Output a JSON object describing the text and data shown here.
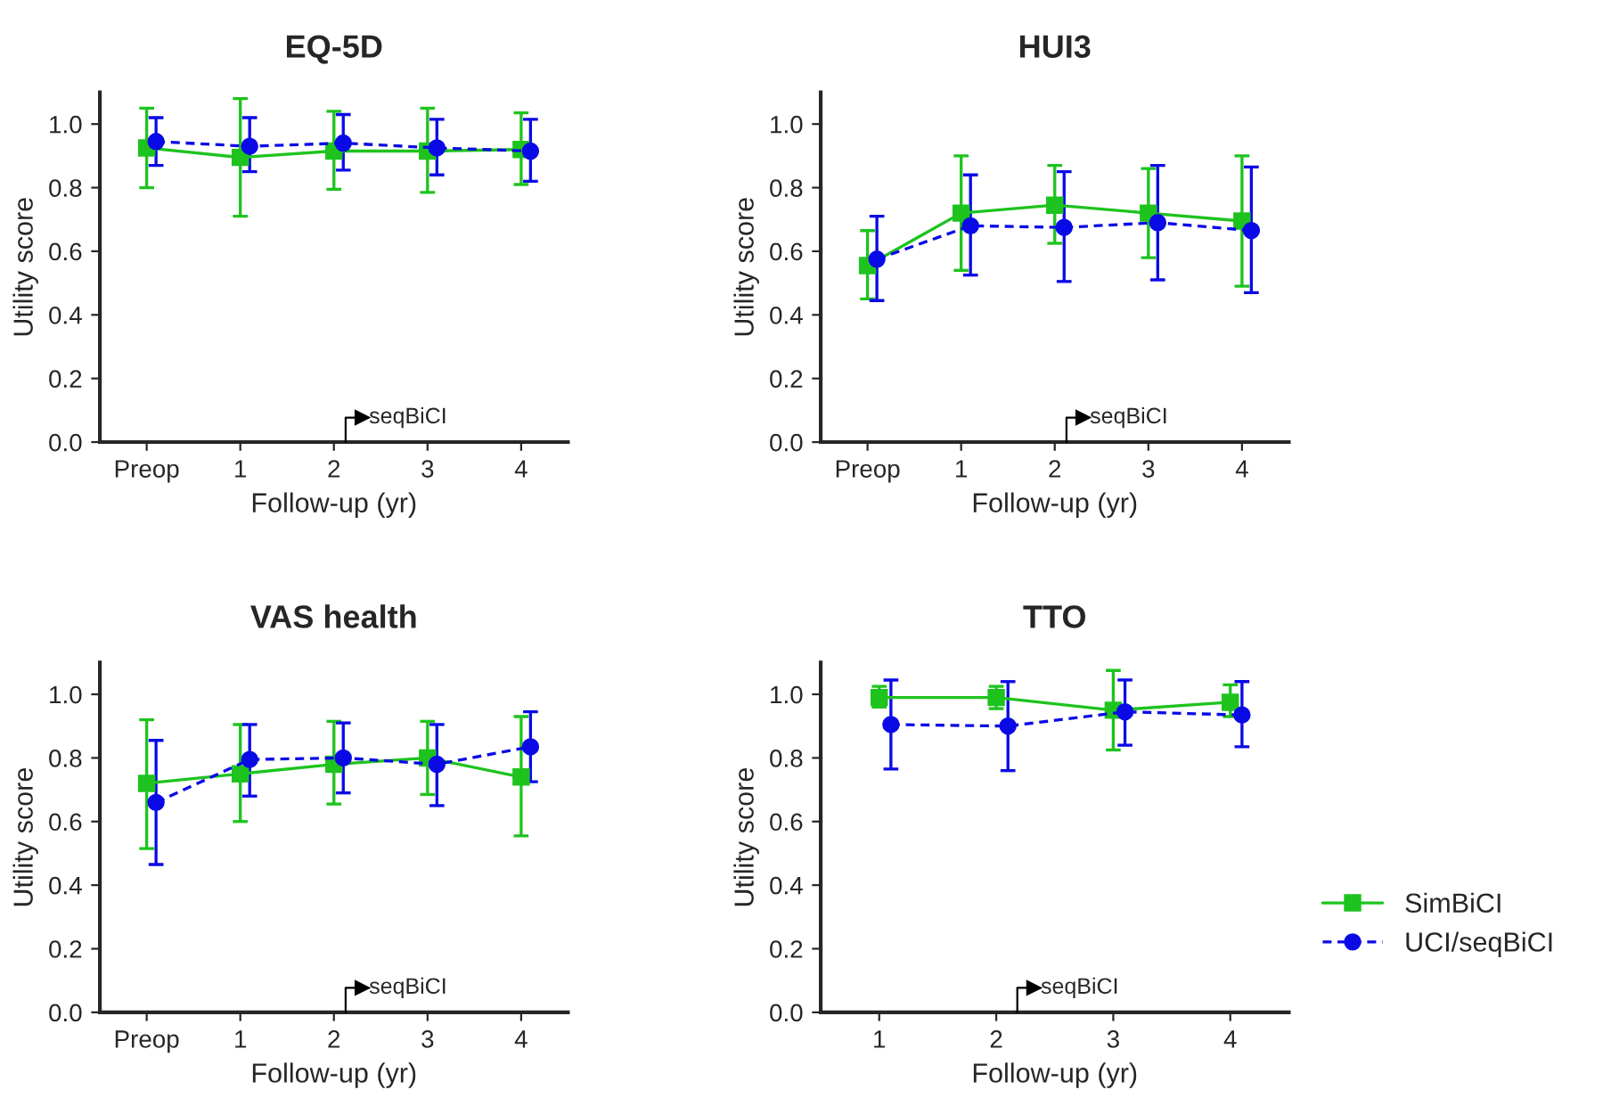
{
  "chart_data": [
    {
      "type": "line",
      "title": "EQ-5D",
      "xlabel": "Follow-up (yr)",
      "ylabel": "Utility score",
      "categories": [
        "Preop",
        "1",
        "2",
        "3",
        "4"
      ],
      "ylim": [
        0,
        1.1
      ],
      "yticks": [
        {
          "value": 0,
          "label": "0.0"
        },
        {
          "value": 0.2,
          "label": "0.2"
        },
        {
          "value": 0.4,
          "label": "0.4"
        },
        {
          "value": 0.6,
          "label": "0.6"
        },
        {
          "value": 0.8,
          "label": "0.8"
        },
        {
          "value": 1,
          "label": "1.0"
        }
      ],
      "grid": false,
      "annotations": [
        "seqBiCI"
      ],
      "series": [
        {
          "color": "#1ec31e",
          "marker": "square",
          "line_style": "solid",
          "values": [
            0.925,
            0.895,
            0.915,
            0.915,
            0.92
          ],
          "errors": [
            [
              0.8,
              1.05
            ],
            [
              0.71,
              1.08
            ],
            [
              0.795,
              1.04
            ],
            [
              0.785,
              1.05
            ],
            [
              0.81,
              1.035
            ]
          ]
        },
        {
          "color": "#0a0ae6",
          "marker": "circle",
          "line_style": "dashed",
          "values": [
            0.945,
            0.93,
            0.94,
            0.925,
            0.915
          ],
          "errors": [
            [
              0.87,
              1.02
            ],
            [
              0.85,
              1.02
            ],
            [
              0.855,
              1.03
            ],
            [
              0.84,
              1.015
            ],
            [
              0.82,
              1.015
            ]
          ]
        }
      ]
    },
    {
      "type": "line",
      "title": "HUI3",
      "xlabel": "Follow-up (yr)",
      "ylabel": "Utility score",
      "categories": [
        "Preop",
        "1",
        "2",
        "3",
        "4"
      ],
      "ylim": [
        0,
        1.1
      ],
      "yticks": [
        {
          "value": 0,
          "label": "0.0"
        },
        {
          "value": 0.2,
          "label": "0.2"
        },
        {
          "value": 0.4,
          "label": "0.4"
        },
        {
          "value": 0.6,
          "label": "0.6"
        },
        {
          "value": 0.8,
          "label": "0.8"
        },
        {
          "value": 1,
          "label": "1.0"
        }
      ],
      "grid": false,
      "annotations": [
        "seqBiCI"
      ],
      "series": [
        {
          "color": "#1ec31e",
          "marker": "square",
          "line_style": "solid",
          "values": [
            0.555,
            0.72,
            0.745,
            0.72,
            0.695
          ],
          "errors": [
            [
              0.45,
              0.665
            ],
            [
              0.54,
              0.9
            ],
            [
              0.625,
              0.87
            ],
            [
              0.58,
              0.86
            ],
            [
              0.49,
              0.9
            ]
          ]
        },
        {
          "color": "#0a0ae6",
          "marker": "circle",
          "line_style": "dashed",
          "values": [
            0.575,
            0.68,
            0.675,
            0.69,
            0.665
          ],
          "errors": [
            [
              0.445,
              0.71
            ],
            [
              0.525,
              0.84
            ],
            [
              0.505,
              0.85
            ],
            [
              0.51,
              0.87
            ],
            [
              0.47,
              0.865
            ]
          ]
        }
      ]
    },
    {
      "type": "line",
      "title": "VAS health",
      "xlabel": "Follow-up (yr)",
      "ylabel": "Utility score",
      "categories": [
        "Preop",
        "1",
        "2",
        "3",
        "4"
      ],
      "ylim": [
        0,
        1.1
      ],
      "yticks": [
        {
          "value": 0,
          "label": "0.0"
        },
        {
          "value": 0.2,
          "label": "0.2"
        },
        {
          "value": 0.4,
          "label": "0.4"
        },
        {
          "value": 0.6,
          "label": "0.6"
        },
        {
          "value": 0.8,
          "label": "0.8"
        },
        {
          "value": 1,
          "label": "1.0"
        }
      ],
      "grid": false,
      "annotations": [
        "seqBiCI"
      ],
      "series": [
        {
          "color": "#1ec31e",
          "marker": "square",
          "line_style": "solid",
          "values": [
            0.72,
            0.75,
            0.78,
            0.8,
            0.74
          ],
          "errors": [
            [
              0.515,
              0.92
            ],
            [
              0.6,
              0.905
            ],
            [
              0.655,
              0.915
            ],
            [
              0.685,
              0.915
            ],
            [
              0.555,
              0.93
            ]
          ]
        },
        {
          "color": "#0a0ae6",
          "marker": "circle",
          "line_style": "dashed",
          "values": [
            0.66,
            0.795,
            0.8,
            0.78,
            0.835
          ],
          "errors": [
            [
              0.465,
              0.855
            ],
            [
              0.68,
              0.905
            ],
            [
              0.69,
              0.91
            ],
            [
              0.65,
              0.905
            ],
            [
              0.725,
              0.945
            ]
          ]
        }
      ]
    },
    {
      "type": "line",
      "title": "TTO",
      "xlabel": "Follow-up (yr)",
      "ylabel": "Utility score",
      "categories": [
        "1",
        "2",
        "3",
        "4"
      ],
      "ylim": [
        0,
        1.1
      ],
      "yticks": [
        {
          "value": 0,
          "label": "0.0"
        },
        {
          "value": 0.2,
          "label": "0.2"
        },
        {
          "value": 0.4,
          "label": "0.4"
        },
        {
          "value": 0.6,
          "label": "0.6"
        },
        {
          "value": 0.8,
          "label": "0.8"
        },
        {
          "value": 1,
          "label": "1.0"
        }
      ],
      "grid": false,
      "legend": "right",
      "annotations": [
        "seqBiCI"
      ],
      "series": [
        {
          "name": "SimBiCI",
          "color": "#1ec31e",
          "marker": "square",
          "line_style": "solid",
          "values": [
            0.99,
            0.99,
            0.95,
            0.975
          ],
          "errors": [
            [
              0.96,
              1.025
            ],
            [
              0.955,
              1.025
            ],
            [
              0.825,
              1.075
            ],
            [
              0.93,
              1.03
            ]
          ]
        },
        {
          "name": "UCI/seqBiCI",
          "color": "#0a0ae6",
          "marker": "circle",
          "line_style": "dashed",
          "values": [
            0.905,
            0.9,
            0.945,
            0.935
          ],
          "errors": [
            [
              0.765,
              1.045
            ],
            [
              0.76,
              1.04
            ],
            [
              0.84,
              1.045
            ],
            [
              0.835,
              1.04
            ]
          ]
        }
      ]
    }
  ]
}
